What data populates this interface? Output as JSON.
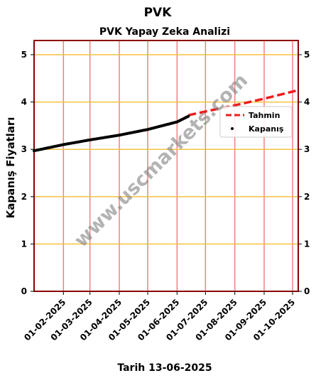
{
  "header": {
    "title": "PVK"
  },
  "watermark": "www.uscmarkets.com",
  "chart_data": {
    "type": "line",
    "title": "PVK Yapay Zeka Analizi",
    "xlabel": "Tarih 13-06-2025",
    "ylabel": "Kapanış Fiyatları",
    "ylim": [
      0,
      5.3
    ],
    "y_ticks": [
      0,
      1,
      2,
      3,
      4,
      5
    ],
    "x_range": [
      "2025-01-01",
      "2025-10-07"
    ],
    "x_ticks": [
      {
        "date": "2025-02-01",
        "label": "01-02-2025"
      },
      {
        "date": "2025-03-01",
        "label": "01-03-2025"
      },
      {
        "date": "2025-04-01",
        "label": "01-04-2025"
      },
      {
        "date": "2025-05-01",
        "label": "01-05-2025"
      },
      {
        "date": "2025-06-01",
        "label": "01-06-2025"
      },
      {
        "date": "2025-07-01",
        "label": "01-07-2025"
      },
      {
        "date": "2025-08-01",
        "label": "01-08-2025"
      },
      {
        "date": "2025-09-01",
        "label": "01-09-2025"
      },
      {
        "date": "2025-10-01",
        "label": "01-10-2025"
      }
    ],
    "grid": true,
    "legend_position": "upper-right",
    "series": [
      {
        "name": "Tahmin",
        "style": "dashed-line",
        "color": "#ee1c1c",
        "x": [
          "2025-06-13",
          "2025-07-01",
          "2025-08-01",
          "2025-09-01",
          "2025-10-07"
        ],
        "values": [
          3.72,
          3.8,
          3.93,
          4.07,
          4.25
        ]
      },
      {
        "name": "Kapanış",
        "style": "points",
        "color": "#000000",
        "x": [
          "2025-01-01",
          "2025-02-01",
          "2025-03-01",
          "2025-04-01",
          "2025-05-01",
          "2025-06-01",
          "2025-06-13"
        ],
        "values": [
          2.97,
          3.1,
          3.2,
          3.3,
          3.42,
          3.58,
          3.7
        ]
      }
    ],
    "colors": {
      "frame": "#8b0000",
      "v_grid": "#f08080",
      "h_grid": "#f5c242"
    }
  }
}
